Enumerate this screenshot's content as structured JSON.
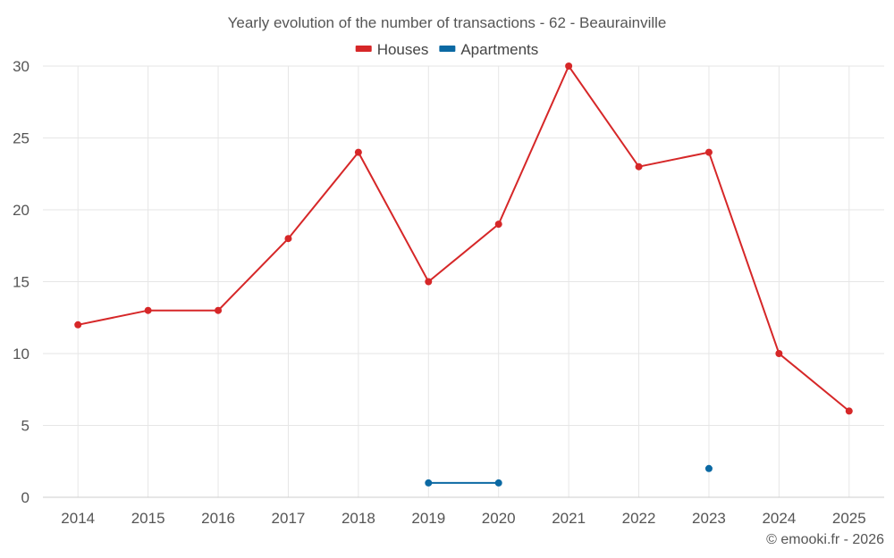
{
  "chart_data": {
    "type": "line",
    "title": "Yearly evolution of the number of transactions - 62 - Beaurainville",
    "categories": [
      "2014",
      "2015",
      "2016",
      "2017",
      "2018",
      "2019",
      "2020",
      "2021",
      "2022",
      "2023",
      "2024",
      "2025"
    ],
    "series": [
      {
        "name": "Houses",
        "color": "#d62728",
        "values": [
          12,
          13,
          13,
          18,
          24,
          15,
          19,
          30,
          23,
          24,
          10,
          6
        ]
      },
      {
        "name": "Apartments",
        "color": "#0b69a3",
        "values": [
          null,
          null,
          null,
          null,
          null,
          1,
          1,
          null,
          null,
          2,
          null,
          null
        ]
      }
    ],
    "ylim": [
      0,
      30
    ],
    "yticks": [
      0,
      5,
      10,
      15,
      20,
      25,
      30
    ],
    "xlabel": "",
    "ylabel": "",
    "legend_position": "top-center",
    "grid": true
  },
  "credit": "© emooki.fr - 2026"
}
